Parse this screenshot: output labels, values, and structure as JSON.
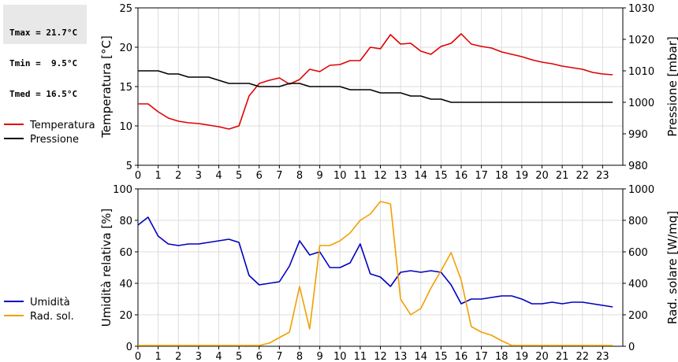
{
  "stats": {
    "tmax": "Tmax = 21.7°C",
    "tmin": "Tmin =  9.5°C",
    "tmed": "Tmed = 16.5°C"
  },
  "chart_data": [
    {
      "type": "line",
      "x_ticks": [
        "0",
        "1",
        "2",
        "3",
        "4",
        "5",
        "6",
        "7",
        "8",
        "9",
        "10",
        "11",
        "12",
        "13",
        "14",
        "15",
        "16",
        "17",
        "18",
        "19",
        "20",
        "21",
        "22",
        "23"
      ],
      "xlim": [
        0,
        24
      ],
      "ylabel": "Temperatura [°C]",
      "ylim": [
        5,
        25
      ],
      "y_ticks": [
        "5",
        "10",
        "15",
        "20",
        "25"
      ],
      "y2label": "Pressione [mbar]",
      "y2lim": [
        980,
        1030
      ],
      "y2_ticks": [
        "980",
        "990",
        "1000",
        "1010",
        "1020",
        "1030"
      ],
      "grid": true,
      "legend": "left",
      "series": [
        {
          "name": "Temperatura",
          "axis": "left",
          "color": "#e00000",
          "x": [
            0,
            0.5,
            1,
            1.5,
            2,
            2.5,
            3,
            3.5,
            4,
            4.5,
            5,
            5.5,
            6,
            6.5,
            7,
            7.5,
            8,
            8.5,
            9,
            9.5,
            10,
            10.5,
            11,
            11.5,
            12,
            12.5,
            13,
            13.5,
            14,
            14.5,
            15,
            15.5,
            16,
            16.5,
            17,
            17.5,
            18,
            18.5,
            19,
            19.5,
            20,
            20.5,
            21,
            21.5,
            22,
            22.5,
            23,
            23.5
          ],
          "y": [
            12.8,
            12.8,
            11.8,
            11.0,
            10.6,
            10.4,
            10.3,
            10.1,
            9.9,
            9.6,
            10.0,
            13.8,
            15.4,
            15.8,
            16.1,
            15.3,
            15.9,
            17.2,
            16.9,
            17.7,
            17.8,
            18.3,
            18.3,
            20.0,
            19.8,
            21.6,
            20.4,
            20.5,
            19.5,
            19.1,
            20.1,
            20.5,
            21.7,
            20.4,
            20.1,
            19.9,
            19.4,
            19.1,
            18.8,
            18.4,
            18.1,
            17.9,
            17.6,
            17.4,
            17.2,
            16.8,
            16.6,
            16.5
          ]
        },
        {
          "name": "Pressione",
          "axis": "right",
          "color": "#000000",
          "x": [
            0,
            1,
            1.5,
            2,
            2.5,
            3,
            3.5,
            4,
            4.5,
            5,
            5.5,
            6,
            6.5,
            7,
            7.5,
            8,
            8.5,
            9,
            9.5,
            10,
            10.5,
            11,
            11.5,
            12,
            12.5,
            13,
            13.5,
            14,
            14.5,
            15,
            15.5,
            16,
            23.5
          ],
          "y": [
            1010,
            1010,
            1009,
            1009,
            1008,
            1008,
            1008,
            1007,
            1006,
            1006,
            1006,
            1005,
            1005,
            1005,
            1006,
            1006,
            1005,
            1005,
            1005,
            1005,
            1004,
            1004,
            1004,
            1003,
            1003,
            1003,
            1002,
            1002,
            1001,
            1001,
            1000,
            1000,
            1000
          ]
        }
      ]
    },
    {
      "type": "line",
      "x_ticks": [
        "0",
        "1",
        "2",
        "3",
        "4",
        "5",
        "6",
        "7",
        "8",
        "9",
        "10",
        "11",
        "12",
        "13",
        "14",
        "15",
        "16",
        "17",
        "18",
        "19",
        "20",
        "21",
        "22",
        "23"
      ],
      "xlim": [
        0,
        24
      ],
      "ylabel": "Umidità relativa [%]",
      "ylim": [
        0,
        100
      ],
      "y_ticks": [
        "0",
        "20",
        "40",
        "60",
        "80",
        "100"
      ],
      "y2label": "Rad. solare [W/mq]",
      "y2lim": [
        0,
        1000
      ],
      "y2_ticks": [
        "0",
        "200",
        "400",
        "600",
        "800",
        "1000"
      ],
      "grid": true,
      "legend": "left",
      "series": [
        {
          "name": "Umidità",
          "axis": "left",
          "color": "#0000c0",
          "x": [
            0,
            0.5,
            1,
            1.5,
            2,
            2.5,
            3,
            3.5,
            4,
            4.5,
            5,
            5.5,
            6,
            6.5,
            7,
            7.5,
            8,
            8.5,
            9,
            9.5,
            10,
            10.5,
            11,
            11.5,
            12,
            12.5,
            13,
            13.5,
            14,
            14.5,
            15,
            15.5,
            16,
            16.5,
            17,
            17.5,
            18,
            18.5,
            19,
            19.5,
            20,
            20.5,
            21,
            21.5,
            22,
            22.5,
            23,
            23.5
          ],
          "y": [
            77,
            82,
            70,
            65,
            64,
            65,
            65,
            66,
            67,
            68,
            66,
            45,
            39,
            40,
            41,
            51,
            67,
            58,
            60,
            50,
            50,
            53,
            65,
            46,
            44,
            38,
            47,
            48,
            47,
            48,
            47,
            39,
            27,
            30,
            30,
            31,
            32,
            32,
            30,
            27,
            27,
            28,
            27,
            28,
            28,
            27,
            26,
            25
          ]
        },
        {
          "name": "Rad. sol.",
          "axis": "right",
          "color": "#f0a000",
          "x": [
            0,
            0.5,
            1,
            1.5,
            2,
            2.5,
            3,
            3.5,
            4,
            4.5,
            5,
            5.5,
            6,
            6.5,
            7,
            7.5,
            8,
            8.5,
            9,
            9.5,
            10,
            10.5,
            11,
            11.5,
            12,
            12.5,
            13,
            13.5,
            14,
            14.5,
            15,
            15.5,
            16,
            16.5,
            17,
            17.5,
            18,
            18.5,
            19,
            19.5,
            20,
            20.5,
            21,
            21.5,
            22,
            22.5,
            23,
            23.5
          ],
          "y": [
            5,
            5,
            5,
            5,
            5,
            5,
            5,
            5,
            5,
            5,
            5,
            5,
            5,
            20,
            55,
            90,
            380,
            110,
            640,
            640,
            670,
            720,
            800,
            840,
            920,
            905,
            300,
            200,
            240,
            370,
            480,
            595,
            420,
            125,
            90,
            70,
            35,
            5,
            5,
            5,
            5,
            5,
            5,
            5,
            5,
            5,
            5,
            5
          ]
        }
      ]
    }
  ]
}
